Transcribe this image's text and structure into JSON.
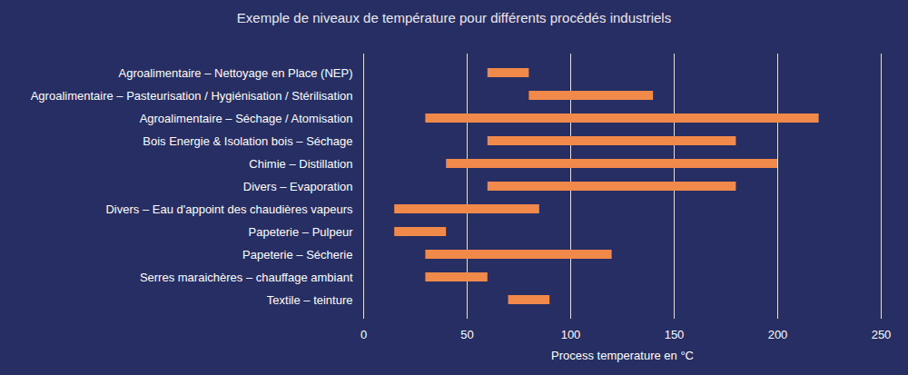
{
  "chart_data": {
    "type": "bar",
    "orientation": "horizontal",
    "title": "Exemple de niveaux de température pour différents procédés industriels",
    "x_label": "Process temperature en °C",
    "categories": [
      "Agroalimentaire – Nettoyage en Place (NEP)",
      "Agroalimentaire – Pasteurisation / Hygiénisation / Stérilisation",
      "Agroalimentaire – Séchage / Atomisation",
      "Bois Energie & Isolation bois – Séchage",
      "Chimie – Distillation",
      "Divers – Evaporation",
      "Divers – Eau d'appoint des chaudières vapeurs",
      "Papeterie – Pulpeur",
      "Papeterie – Sécherie",
      "Serres maraichères – chauffage ambiant",
      "Textile – teinture"
    ],
    "values": [
      [
        60,
        80
      ],
      [
        80,
        140
      ],
      [
        30,
        220
      ],
      [
        60,
        180
      ],
      [
        40,
        200
      ],
      [
        60,
        180
      ],
      [
        15,
        85
      ],
      [
        15,
        40
      ],
      [
        30,
        120
      ],
      [
        30,
        60
      ],
      [
        70,
        90
      ]
    ],
    "color": "#f0894a",
    "xlim": [
      0,
      250
    ],
    "xticks": [
      0,
      50,
      100,
      150,
      200,
      250
    ],
    "grid": true
  }
}
